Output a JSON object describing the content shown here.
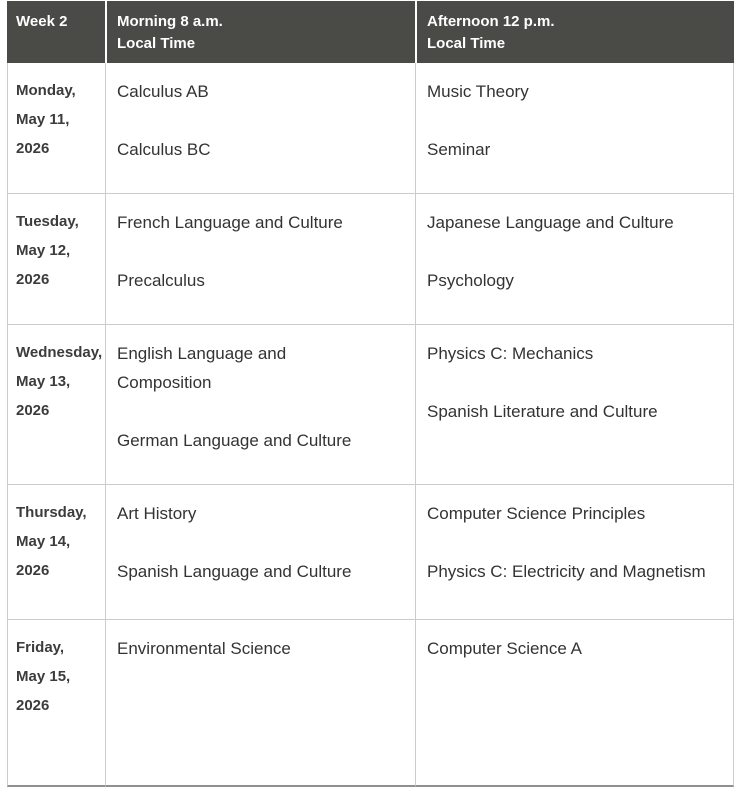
{
  "header": {
    "week": "Week 2",
    "morning": [
      "Morning 8 a.m.",
      "Local Time"
    ],
    "afternoon": [
      "Afternoon 12 p.m.",
      "Local Time"
    ]
  },
  "rows": [
    {
      "date": [
        "Monday,",
        "May 11,",
        "2026"
      ],
      "morning": [
        "Calculus AB",
        "Calculus BC"
      ],
      "afternoon": [
        "Music Theory",
        "Seminar"
      ]
    },
    {
      "date": [
        "Tuesday,",
        "May 12,",
        "2026"
      ],
      "morning": [
        "French Language and Culture",
        "Precalculus"
      ],
      "afternoon": [
        "Japanese Language and Culture",
        "Psychology"
      ]
    },
    {
      "date": [
        "Wednesday,",
        "May 13,",
        "2026"
      ],
      "morning": [
        "English Language and Composition",
        "German Language and Culture"
      ],
      "afternoon": [
        "Physics C: Mechanics",
        "Spanish Literature and Culture"
      ]
    },
    {
      "date": [
        "Thursday,",
        "May 14,",
        "2026"
      ],
      "morning": [
        "Art History",
        "Spanish Language and Culture"
      ],
      "afternoon": [
        "Computer Science Principles",
        "Physics C: Electricity and Magnetism"
      ]
    },
    {
      "date": [
        "Friday,",
        "May 15,",
        "2026"
      ],
      "morning": [
        "Environmental Science"
      ],
      "afternoon": [
        "Computer Science A"
      ]
    }
  ],
  "colors": {
    "header_bg": "#4a4a47",
    "header_text": "#ffffff",
    "row_border": "#cccccc",
    "bottom_border": "#8f8f8f",
    "date_text": "#3c3c3c",
    "course_text": "#333333"
  }
}
